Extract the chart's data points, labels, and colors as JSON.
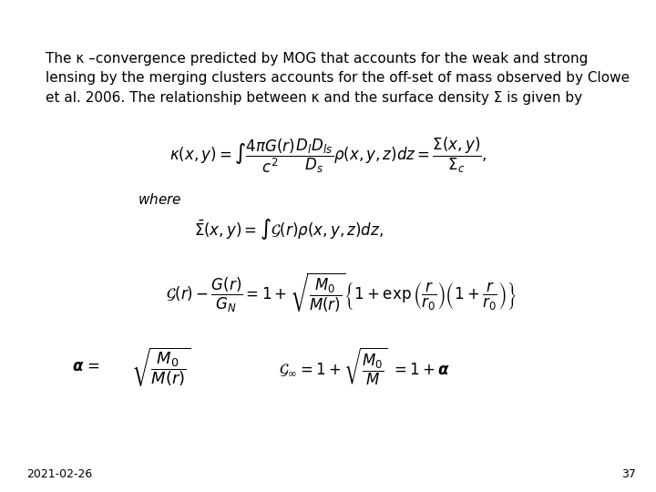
{
  "background_color": "#ffffff",
  "text_color": "#000000",
  "footer_date": "2021-02-26",
  "footer_page": "37",
  "title_line1": "The κ –convergence predicted by MOG that accounts for the weak and strong",
  "title_line2": "lensing by the merging clusters accounts for the off-set of mass observed by Clowe",
  "title_line3": "et al. 2006. The relationship between κ and the surface density Σ is given by",
  "title_fontsize": 11.0,
  "eq_fontsize": 12,
  "where_fontsize": 11,
  "footer_fontsize": 9
}
